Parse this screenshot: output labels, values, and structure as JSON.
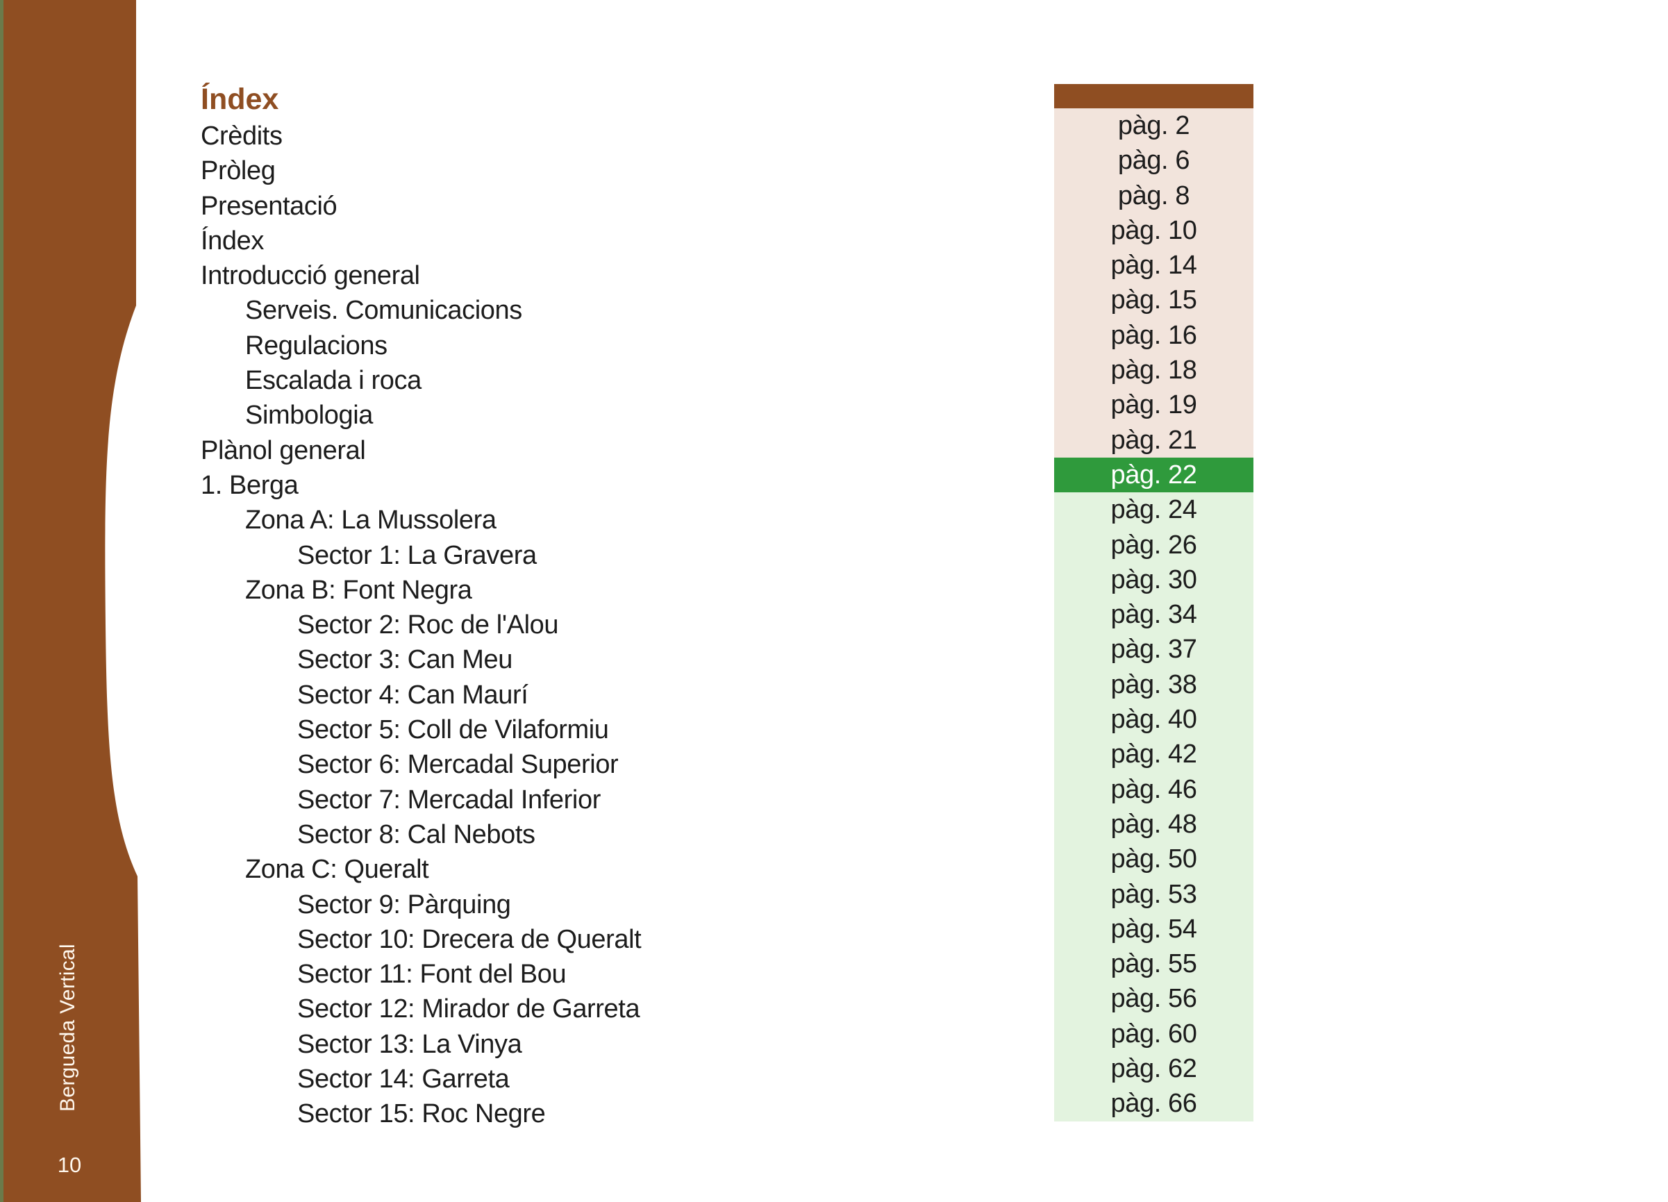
{
  "sidebar": {
    "title": "Bergueda Vertical",
    "page_number": "10",
    "color": "#8f4e22"
  },
  "heading": {
    "title": "Índex",
    "color": "#8f4e22"
  },
  "colors": {
    "intro_band": "#f2e4dc",
    "berga_band": "#e3f3df",
    "highlight": "#2f9a3c"
  },
  "toc": [
    {
      "label": "Crèdits",
      "page": "pàg. 2"
    },
    {
      "label": "Pròleg",
      "page": "pàg. 6"
    },
    {
      "label": "Presentació",
      "page": "pàg. 8"
    },
    {
      "label": "Índex",
      "page": "pàg. 10"
    },
    {
      "label": "Introducció general",
      "page": "pàg. 14"
    },
    {
      "label": "Serveis. Comunicacions",
      "page": "pàg. 15"
    },
    {
      "label": "Regulacions",
      "page": "pàg. 16"
    },
    {
      "label": "Escalada i roca",
      "page": "pàg. 18"
    },
    {
      "label": "Simbologia",
      "page": "pàg. 19"
    },
    {
      "label": "Plànol general",
      "page": "pàg. 21"
    },
    {
      "label": "1. Berga",
      "page": "pàg. 22"
    },
    {
      "label": "Zona A: La Mussolera",
      "page": "pàg. 24"
    },
    {
      "label": "Sector 1: La Gravera",
      "page": "pàg. 26"
    },
    {
      "label": "Zona B: Font Negra",
      "page": "pàg. 30"
    },
    {
      "label": "Sector 2: Roc de l'Alou",
      "page": "pàg. 34"
    },
    {
      "label": "Sector 3: Can Meu",
      "page": "pàg. 37"
    },
    {
      "label": "Sector 4: Can Maurí",
      "page": "pàg. 38"
    },
    {
      "label": "Sector 5: Coll de Vilaformiu",
      "page": "pàg. 40"
    },
    {
      "label": "Sector 6: Mercadal Superior",
      "page": "pàg. 42"
    },
    {
      "label": "Sector 7: Mercadal Inferior",
      "page": "pàg. 46"
    },
    {
      "label": "Sector 8: Cal Nebots",
      "page": "pàg. 48"
    },
    {
      "label": "Zona C: Queralt",
      "page": "pàg. 50"
    },
    {
      "label": "Sector 9: Pàrquing",
      "page": "pàg. 53"
    },
    {
      "label": "Sector 10: Drecera de Queralt",
      "page": "pàg. 54"
    },
    {
      "label": "Sector 11: Font del Bou",
      "page": "pàg. 55"
    },
    {
      "label": "Sector 12: Mirador de Garreta",
      "page": "pàg. 56"
    },
    {
      "label": "Sector 13: La Vinya",
      "page": "pàg. 60"
    },
    {
      "label": "Sector 14: Garreta",
      "page": "pàg. 62"
    },
    {
      "label": "Sector 15: Roc Negre",
      "page": "pàg. 66"
    }
  ]
}
